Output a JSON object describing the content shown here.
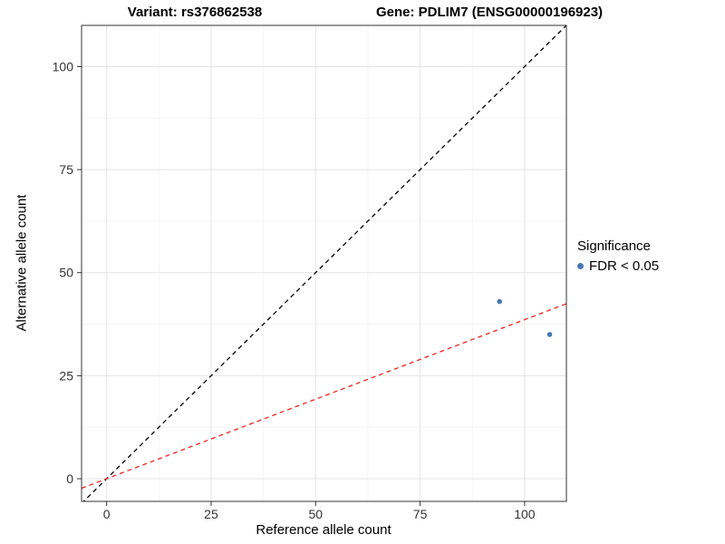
{
  "header": {
    "variant_title": "Variant: rs376862538",
    "gene_title": "Gene: PDLIM7 (ENSG00000196923)"
  },
  "legend": {
    "title": "Significance",
    "items": [
      {
        "label": "FDR < 0.05",
        "color": "#4878b0"
      }
    ]
  },
  "chart_data": {
    "type": "scatter",
    "title": "",
    "xlabel": "Reference allele count",
    "ylabel": "Alternative allele count",
    "xlim": [
      -6,
      110
    ],
    "ylim": [
      -5.5,
      110
    ],
    "xticks": [
      0,
      25,
      50,
      75,
      100
    ],
    "yticks": [
      0,
      25,
      50,
      75,
      100
    ],
    "minor_xticks": [
      12.5,
      37.5,
      62.5,
      87.5
    ],
    "minor_yticks": [
      12.5,
      37.5,
      62.5,
      87.5
    ],
    "grid": true,
    "legend_position": "right",
    "point_color": "#4878b0",
    "points": [
      {
        "x": 94,
        "y": 43,
        "series": "FDR < 0.05"
      },
      {
        "x": 106,
        "y": 35,
        "series": "FDR < 0.05"
      }
    ],
    "lines": [
      {
        "name": "identity-line",
        "slope": 1,
        "intercept": 0,
        "color": "#000000",
        "dash": "dashed"
      },
      {
        "name": "fit-line",
        "slope": 0.386,
        "intercept": 0,
        "color": "#e8231f",
        "dash": "dashed"
      }
    ],
    "colors": {
      "background": "#ffffff",
      "grid_major": "#e4e4e4",
      "grid_minor": "#f2f2f2",
      "panel_border": "#333333",
      "tick_label": "#333333"
    }
  }
}
